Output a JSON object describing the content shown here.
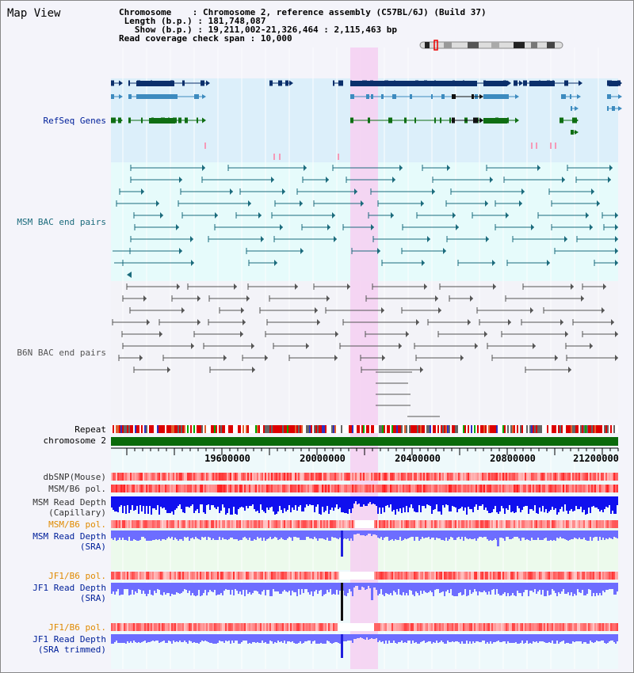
{
  "window": {
    "title": "Map View"
  },
  "header": {
    "chromosome_label": "Chromosome",
    "chromosome_value": "Chromosome 2, reference assembly (C57BL/6J) (Build 37)",
    "length_label": "Length (b.p.)",
    "length_value": "181,748,087",
    "show_label": "Show (b.p.)",
    "show_value": "19,211,002-21,326,464 : 2,115,463 bp",
    "span_label": "Read coverage check span",
    "span_value": "10,000"
  },
  "tracks": {
    "refseq": "RefSeq Genes",
    "msm_bac": "MSM BAC end pairs",
    "b6n_bac": "B6N BAC end pairs",
    "repeat": "Repeat",
    "chromosome": "chromosome 2",
    "dbsnp": "dbSNP(Mouse)",
    "msm_b6_pol": "MSM/B6 pol.",
    "msm_read_depth_cap_1": "MSM Read Depth",
    "msm_read_depth_cap_2": "(Capillary)",
    "msm_b6_pol_2": "MSM/B6 pol.",
    "msm_read_depth_sra_1": "MSM Read Depth",
    "msm_read_depth_sra_2": "(SRA)",
    "jf1_b6_pol": "JF1/B6 pol.",
    "jf1_read_depth_sra_1": "JF1 Read Depth",
    "jf1_read_depth_sra_2": "(SRA)",
    "jf1_b6_pol_2": "JF1/B6 pol.",
    "jf1_read_depth_trim_1": "JF1 Read Depth",
    "jf1_read_depth_trim_2": "(SRA trimmed)"
  },
  "axis": {
    "ticks": [
      "19600000",
      "20000000",
      "20400000",
      "20800000",
      "21200000"
    ]
  },
  "colors": {
    "refseq_bg": "#dceffa",
    "msm_bg": "#e6fbfb",
    "highlight": "#f5d2f2",
    "gene_dark": "#0b2f6b",
    "gene_mid": "#3d8bbf",
    "gene_green": "#0f6e13",
    "msm_line": "#1b6b7c",
    "b6n_line": "#555555",
    "chrom_green": "#0a6a0a",
    "label_blue": "#00209a",
    "label_orange": "#e08a00",
    "depth_blue": "#1010ee",
    "depth_light": "#6d6dff"
  }
}
